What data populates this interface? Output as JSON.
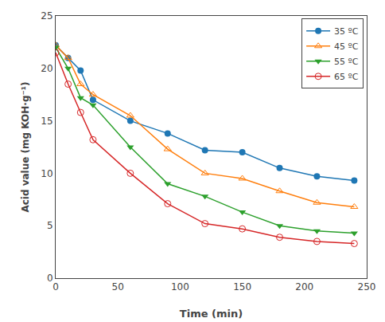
{
  "chart_data": {
    "type": "line",
    "xlabel": "Time (min)",
    "ylabel": "Acid value (mg KOH·g⁻¹)",
    "x": [
      0,
      10,
      20,
      30,
      60,
      90,
      120,
      150,
      180,
      210,
      240
    ],
    "series": [
      {
        "name": "35 ºC",
        "marker": "circle",
        "values": [
          22.2,
          21.0,
          19.8,
          17.0,
          15.0,
          13.8,
          12.2,
          12.0,
          10.5,
          9.7,
          9.3
        ]
      },
      {
        "name": "45 ºC",
        "marker": "triangle-up-open",
        "values": [
          22.2,
          21.0,
          18.5,
          17.5,
          15.5,
          12.3,
          10.0,
          9.5,
          8.3,
          7.2,
          6.8
        ]
      },
      {
        "name": "55 ºC",
        "marker": "triangle-down",
        "values": [
          22.0,
          20.0,
          17.2,
          16.5,
          12.5,
          9.0,
          7.8,
          6.3,
          5.0,
          4.5,
          4.3
        ]
      },
      {
        "name": "65 ºC",
        "marker": "circle-open",
        "values": [
          21.5,
          18.5,
          15.8,
          13.2,
          10.0,
          7.1,
          5.2,
          4.7,
          3.9,
          3.5,
          3.3
        ]
      }
    ],
    "xlim": [
      0,
      250
    ],
    "ylim": [
      0,
      25
    ],
    "xticks": [
      0,
      50,
      100,
      150,
      200,
      250
    ],
    "yticks": [
      0,
      5,
      10,
      15,
      20,
      25
    ],
    "grid": false,
    "legend": "upper right"
  }
}
